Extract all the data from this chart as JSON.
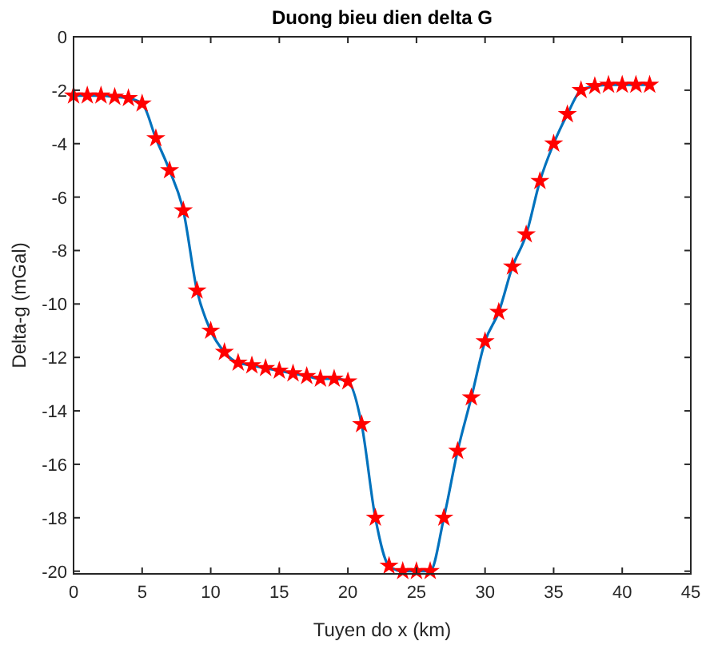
{
  "chart_data": {
    "type": "line",
    "title": "Duong bieu dien delta G",
    "xlabel": "Tuyen do x (km)",
    "ylabel": "Delta-g (mGal)",
    "x": [
      0,
      1,
      2,
      3,
      4,
      5,
      6,
      7,
      8,
      9,
      10,
      11,
      12,
      13,
      14,
      15,
      16,
      17,
      18,
      19,
      20,
      21,
      22,
      23,
      24,
      25,
      26,
      27,
      28,
      29,
      30,
      31,
      32,
      33,
      34,
      35,
      36,
      37,
      38,
      39,
      40,
      41,
      42
    ],
    "series": [
      {
        "color": "#0072bd",
        "marker": "none",
        "values": [
          -2.2,
          -2.2,
          -2.2,
          -2.25,
          -2.3,
          -2.5,
          -3.8,
          -5.0,
          -6.5,
          -9.5,
          -11.0,
          -11.8,
          -12.2,
          -12.3,
          -12.4,
          -12.5,
          -12.6,
          -12.7,
          -12.8,
          -12.8,
          -12.9,
          -14.5,
          -18.0,
          -19.8,
          -20.0,
          -20.0,
          -20.0,
          -18.0,
          -15.5,
          -13.5,
          -11.4,
          -10.3,
          -8.6,
          -7.4,
          -5.4,
          -4.0,
          -2.9,
          -2.0,
          -1.85,
          -1.8,
          -1.8,
          -1.8,
          -1.8
        ]
      },
      {
        "type": "scatter",
        "color": "#ff0000",
        "marker": "star",
        "values": [
          -2.2,
          -2.2,
          -2.2,
          -2.25,
          -2.3,
          -2.5,
          -3.8,
          -5.0,
          -6.5,
          -9.5,
          -11.0,
          -11.8,
          -12.2,
          -12.3,
          -12.4,
          -12.5,
          -12.6,
          -12.7,
          -12.8,
          -12.8,
          -12.9,
          -14.5,
          -18.0,
          -19.8,
          -20.0,
          -20.0,
          -20.0,
          -18.0,
          -15.5,
          -13.5,
          -11.4,
          -10.3,
          -8.6,
          -7.4,
          -5.4,
          -4.0,
          -2.9,
          -2.0,
          -1.85,
          -1.8,
          -1.8,
          -1.8,
          -1.8
        ]
      }
    ],
    "xlim": [
      0,
      45
    ],
    "xticks": [
      0,
      5,
      10,
      15,
      20,
      25,
      30,
      35,
      40,
      45
    ],
    "ylim": [
      -20.1,
      0
    ],
    "yticks": [
      -20,
      -18,
      -16,
      -14,
      -12,
      -10,
      -8,
      -6,
      -4,
      -2,
      0
    ],
    "grid": false
  }
}
